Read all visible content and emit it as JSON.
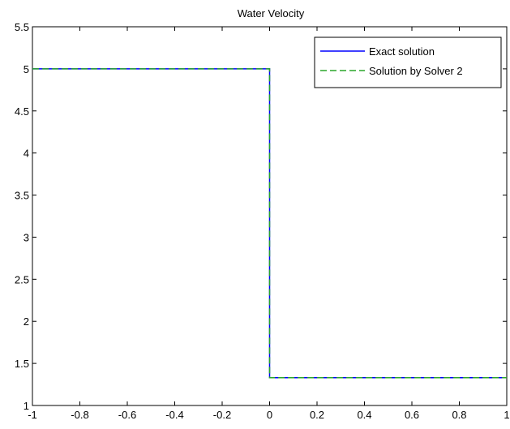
{
  "chart_data": {
    "type": "line",
    "title": "Water Velocity",
    "xlabel": "",
    "ylabel": "",
    "xlim": [
      -1,
      1
    ],
    "ylim": [
      1,
      5.5
    ],
    "xticks": [
      "-1",
      "-0.8",
      "-0.6",
      "-0.4",
      "-0.2",
      "0",
      "0.2",
      "0.4",
      "0.6",
      "0.8",
      "1"
    ],
    "yticks": [
      "1",
      "1.5",
      "2",
      "2.5",
      "3",
      "3.5",
      "4",
      "4.5",
      "5",
      "5.5"
    ],
    "grid": false,
    "legend_position": "top-right",
    "series": [
      {
        "name": "Exact solution",
        "color": "#0000ff",
        "dash": "solid",
        "x": [
          -1,
          0,
          0,
          0,
          0,
          1
        ],
        "y": [
          5,
          5,
          3.15,
          3.15,
          1.33,
          1.33
        ]
      },
      {
        "name": "Solution by Solver 2",
        "color": "#2aa52a",
        "dash": "dashed",
        "x": [
          -1,
          0,
          0,
          1
        ],
        "y": [
          5,
          5,
          1.33,
          1.33
        ]
      }
    ]
  }
}
